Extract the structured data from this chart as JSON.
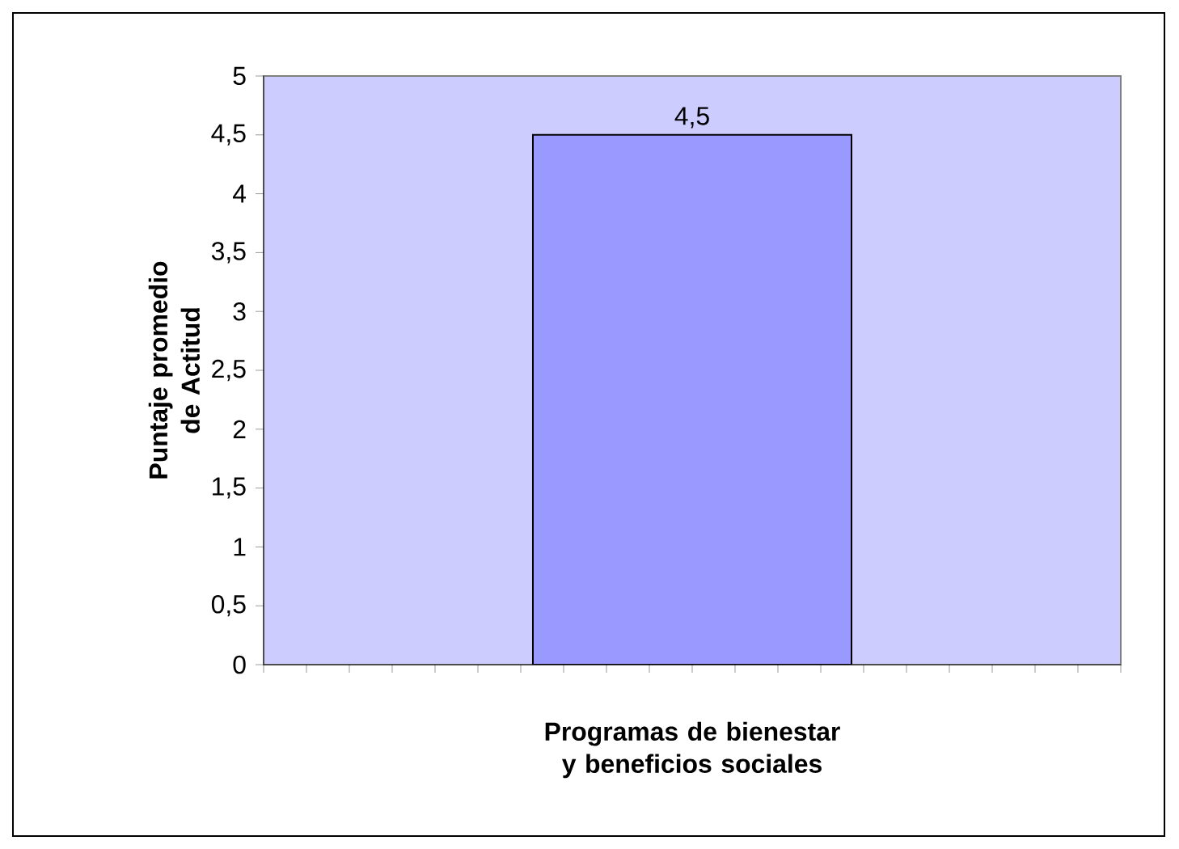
{
  "chart_data": {
    "type": "bar",
    "ylabel": "Puntaje promedio de Actitud",
    "xlabel": "Programas de bienestar y beneficios sociales",
    "categories": [
      null
    ],
    "values": [
      4.5
    ],
    "color": "#9999ff",
    "value_labels": [
      "4,5"
    ],
    "ylim": [
      0,
      5
    ],
    "yticks": [
      0,
      {
        "value": 0.5,
        "label": "0,5"
      },
      1,
      {
        "value": 1.5,
        "label": "1,5"
      },
      2,
      {
        "value": 2.5,
        "label": "2,5"
      },
      3,
      {
        "value": 3.5,
        "label": "3,5"
      },
      4,
      {
        "value": 4.5,
        "label": "4,5"
      },
      5
    ],
    "grid": false
  }
}
